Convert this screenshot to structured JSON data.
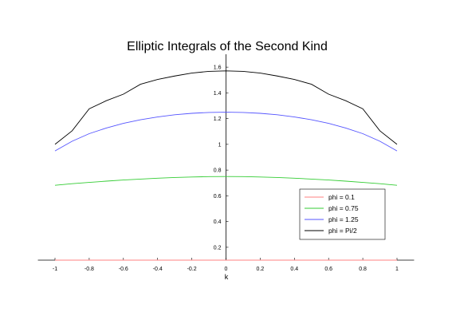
{
  "chart_data": {
    "type": "line",
    "title": "Elliptic Integrals of the Second Kind",
    "xlabel": "k",
    "ylabel": "",
    "xlim": [
      -1.1,
      1.1
    ],
    "ylim": [
      0.1,
      1.7
    ],
    "x_ticks": [
      -1,
      -0.8,
      -0.6,
      -0.4,
      -0.2,
      0,
      0.2,
      0.4,
      0.6,
      0.8,
      1
    ],
    "x_tick_labels": [
      "-1",
      "-0.8",
      "-0.6",
      "-0.4",
      "-0.2",
      "0",
      "0.2",
      "0.4",
      "0.6",
      "0.8",
      "1"
    ],
    "y_ticks": [
      0.2,
      0.4,
      0.6,
      0.8,
      1,
      1.2,
      1.4,
      1.6
    ],
    "y_tick_labels": [
      "0.2",
      "0.4",
      "0.6",
      "0.8",
      "1",
      "1.2",
      "1.4",
      "1.6"
    ],
    "grid": false,
    "legend_position": "bottom-right",
    "x": [
      -1,
      -0.9,
      -0.8,
      -0.7,
      -0.6,
      -0.5,
      -0.4,
      -0.3,
      -0.2,
      -0.1,
      0,
      0.1,
      0.2,
      0.3,
      0.4,
      0.5,
      0.6,
      0.7,
      0.8,
      0.9,
      1
    ],
    "series": [
      {
        "name": "phi = 0.1",
        "color": "#ff8080",
        "values": [
          0.1,
          0.1,
          0.1,
          0.1,
          0.1,
          0.1,
          0.1,
          0.1,
          0.1,
          0.1,
          0.1,
          0.1,
          0.1,
          0.1,
          0.1,
          0.1,
          0.1,
          0.1,
          0.1,
          0.1,
          0.1
        ]
      },
      {
        "name": "phi = 0.75",
        "color": "#33cc33",
        "values": [
          0.682,
          0.694,
          0.704,
          0.714,
          0.723,
          0.73,
          0.737,
          0.742,
          0.746,
          0.749,
          0.75,
          0.749,
          0.746,
          0.742,
          0.737,
          0.73,
          0.723,
          0.714,
          0.704,
          0.694,
          0.682
        ]
      },
      {
        "name": "phi = 1.25",
        "color": "#5555ff",
        "values": [
          0.949,
          1.024,
          1.083,
          1.127,
          1.163,
          1.191,
          1.213,
          1.23,
          1.241,
          1.248,
          1.25,
          1.248,
          1.241,
          1.23,
          1.213,
          1.191,
          1.163,
          1.127,
          1.083,
          1.024,
          0.949
        ]
      },
      {
        "name": "phi = Pi/2",
        "color": "#000000",
        "values": [
          1.0,
          1.105,
          1.276,
          1.339,
          1.39,
          1.467,
          1.504,
          1.531,
          1.554,
          1.567,
          1.571,
          1.567,
          1.554,
          1.531,
          1.504,
          1.467,
          1.39,
          1.339,
          1.276,
          1.105,
          1.0
        ]
      }
    ]
  }
}
